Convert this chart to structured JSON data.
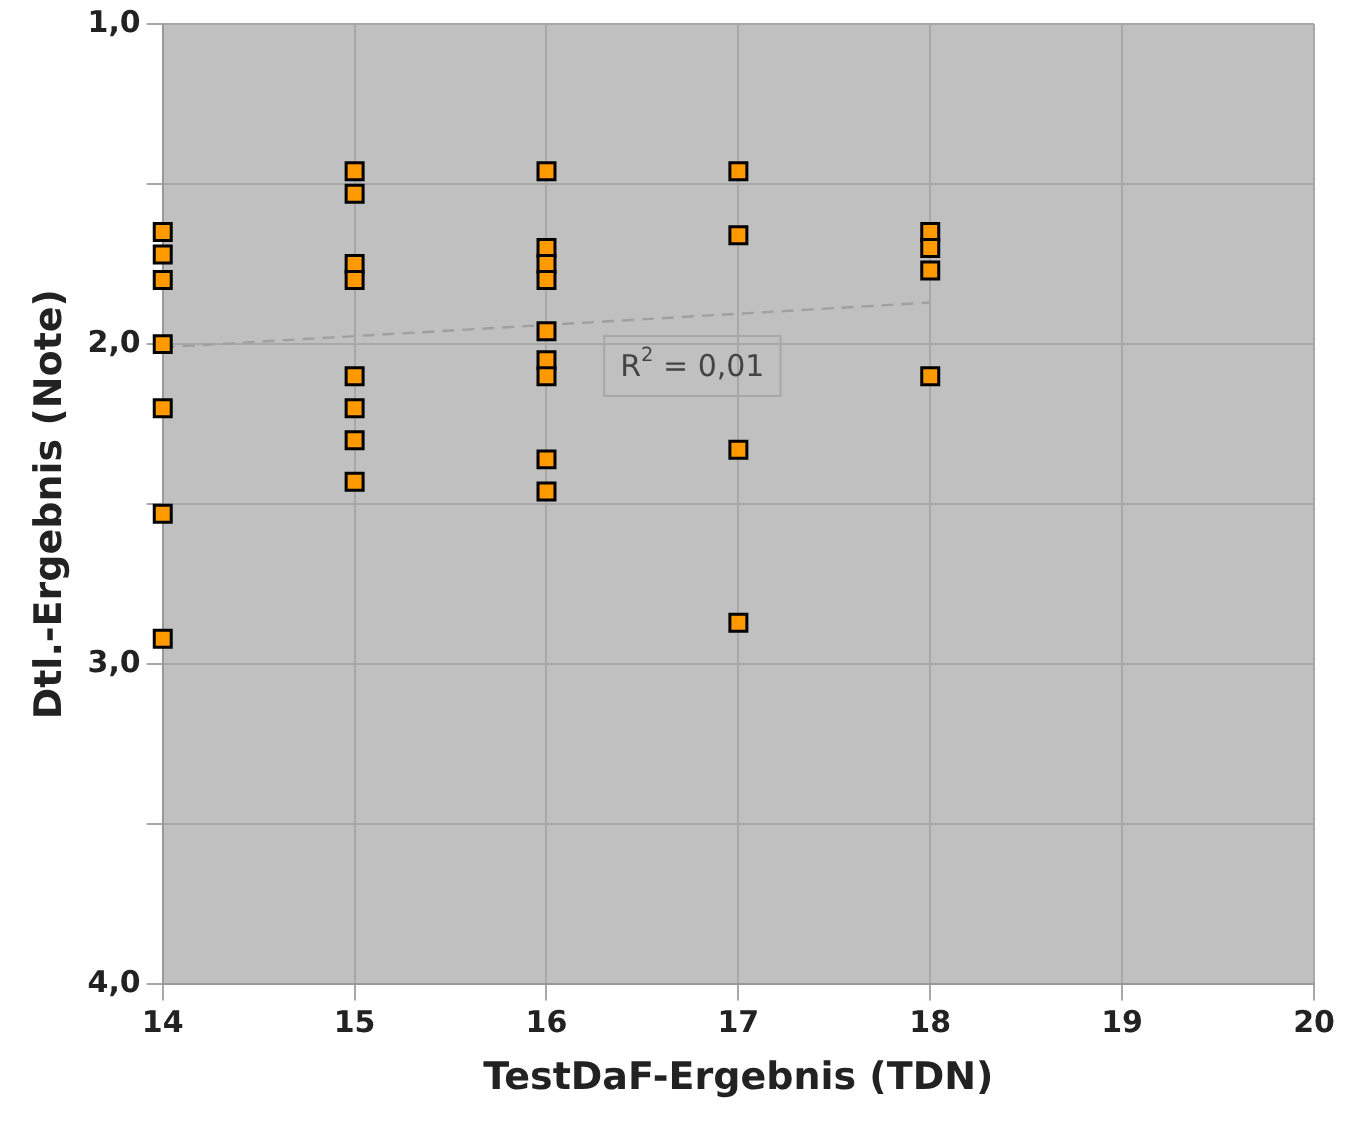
{
  "chart_data": {
    "type": "scatter",
    "xlabel": "TestDaF-Ergebnis (TDN)",
    "ylabel": "Dtl.-Ergebnis (Note)",
    "xlim": [
      14,
      20
    ],
    "xticks": [
      14,
      15,
      16,
      17,
      18,
      19,
      20
    ],
    "ylim": [
      4,
      1
    ],
    "yticks": [
      {
        "value": 1,
        "label": "1,0"
      },
      {
        "value": 1.5,
        "label": null
      },
      {
        "value": 2,
        "label": "2,0"
      },
      {
        "value": 2.5,
        "label": null
      },
      {
        "value": 3,
        "label": "3,0"
      },
      {
        "value": 3.5,
        "label": null
      },
      {
        "value": 4,
        "label": "4,0"
      }
    ],
    "grid": true,
    "legend": false,
    "marker": "square",
    "series": [
      {
        "color": "#ff9900",
        "x": [
          14,
          14,
          14,
          14,
          14,
          14,
          14,
          15,
          15,
          15,
          15,
          15,
          15,
          15,
          15,
          16,
          16,
          16,
          16,
          16,
          16,
          16,
          16,
          16,
          17,
          17,
          17,
          17,
          18,
          18,
          18,
          18
        ],
        "values": [
          1.65,
          1.72,
          1.8,
          2.0,
          2.2,
          2.53,
          2.92,
          1.46,
          1.53,
          1.75,
          1.8,
          2.1,
          2.2,
          2.3,
          2.43,
          1.46,
          1.7,
          1.75,
          1.8,
          1.96,
          2.05,
          2.1,
          2.36,
          2.46,
          1.46,
          1.66,
          2.33,
          2.87,
          1.65,
          1.7,
          1.77,
          2.1
        ]
      },
      {
        "type": "line",
        "color": "#a0a0a0",
        "x": [
          14,
          18
        ],
        "values": [
          2.01,
          1.87
        ],
        "line_style": "dashed",
        "marker": "none"
      }
    ],
    "annotations": [
      "R$^{2}$ = 0,01"
    ]
  }
}
